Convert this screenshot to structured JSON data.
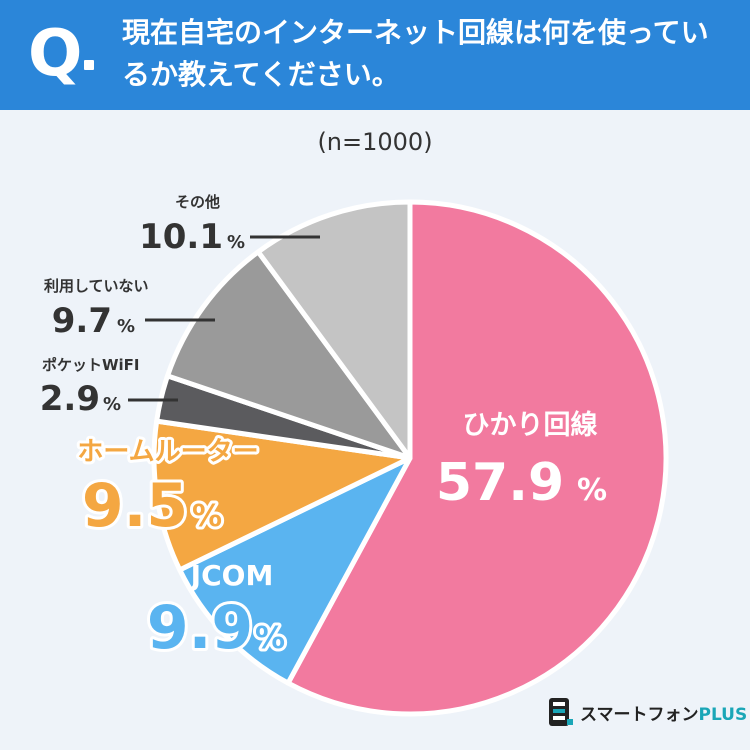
{
  "header": {
    "q_label": "Q",
    "question": "現在自宅のインターネット回線は何を使っているか教えてください。"
  },
  "sample": "(n=1000)",
  "brand": {
    "name": "スマートフォン",
    "suffix": "PLUS"
  },
  "chart_data": {
    "type": "pie",
    "title": "",
    "unit": "%",
    "categories": [
      "ひかり回線",
      "JCOM",
      "ホームルーター",
      "ポケットWiFI",
      "利用していない",
      "その他"
    ],
    "values": [
      57.9,
      9.9,
      9.5,
      2.9,
      9.7,
      10.1
    ],
    "value_labels": [
      "57.9",
      "9.9",
      "9.5",
      "2.9",
      "9.7",
      "10.1"
    ],
    "colors": [
      "#f27a9f",
      "#5ab4f0",
      "#f4a742",
      "#5b5b5e",
      "#9a9a9a",
      "#c4c4c4"
    ],
    "start": "12 o'clock, clockwise"
  }
}
